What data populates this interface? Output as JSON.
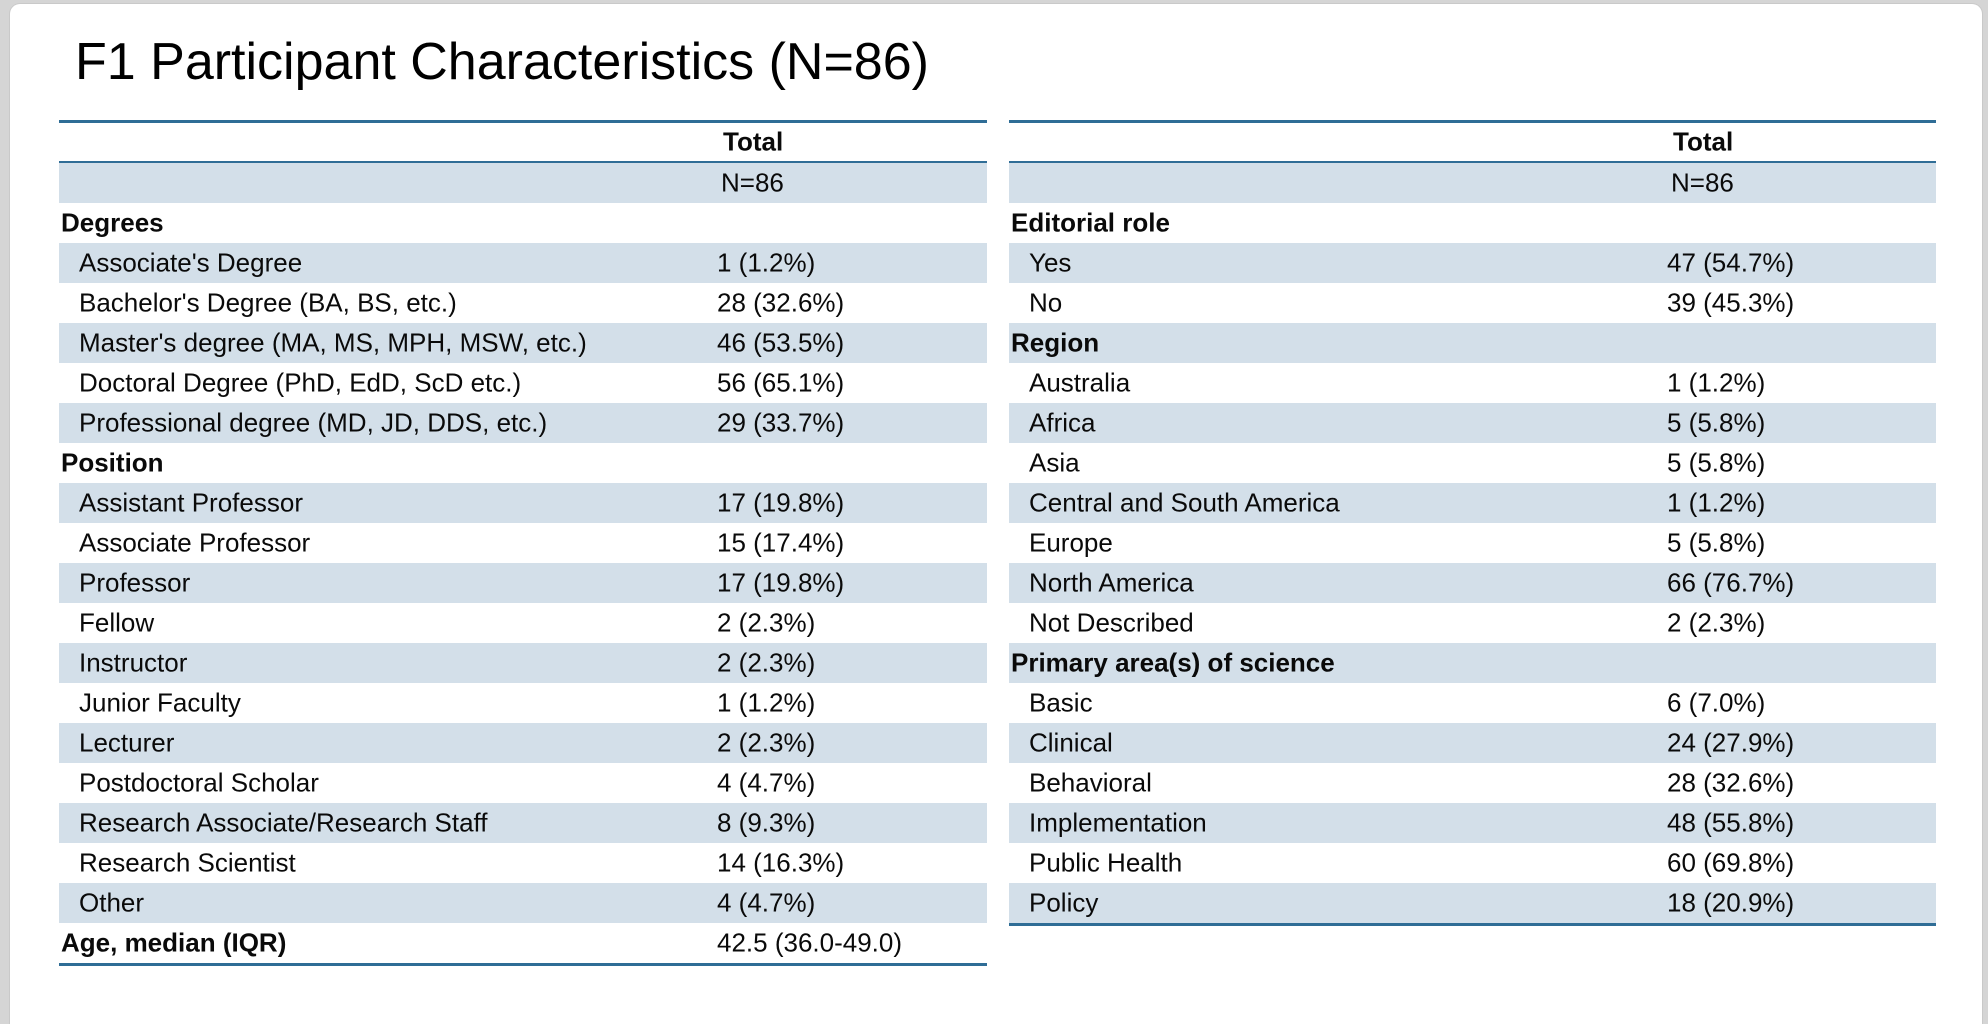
{
  "title": "F1 Participant Characteristics (N=86)",
  "colors": {
    "rule": "#2f6d96",
    "stripe": "#d3dfe9",
    "page_background": "#d5d5d5",
    "canvas_background": "#ffffff",
    "text": "#0a0a0a"
  },
  "tables": [
    {
      "name": "participant-characteristics-left",
      "header_label": "Total",
      "rows": [
        {
          "type": "subheader",
          "label": "",
          "value": "N=86"
        },
        {
          "type": "section",
          "label": "Degrees",
          "value": ""
        },
        {
          "type": "item",
          "label": "Associate's Degree",
          "value": "1 (1.2%)"
        },
        {
          "type": "item",
          "label": "Bachelor's Degree (BA, BS, etc.)",
          "value": "28 (32.6%)"
        },
        {
          "type": "item",
          "label": "Master's degree (MA, MS, MPH, MSW, etc.)",
          "value": "46 (53.5%)"
        },
        {
          "type": "item",
          "label": "Doctoral Degree (PhD, EdD, ScD etc.)",
          "value": "56 (65.1%)"
        },
        {
          "type": "item",
          "label": "Professional degree (MD, JD, DDS, etc.)",
          "value": "29 (33.7%)"
        },
        {
          "type": "section",
          "label": "Position",
          "value": ""
        },
        {
          "type": "item",
          "label": "Assistant Professor",
          "value": "17 (19.8%)"
        },
        {
          "type": "item",
          "label": "Associate Professor",
          "value": "15 (17.4%)"
        },
        {
          "type": "item",
          "label": "Professor",
          "value": "17 (19.8%)"
        },
        {
          "type": "item",
          "label": "Fellow",
          "value": "2 (2.3%)"
        },
        {
          "type": "item",
          "label": "Instructor",
          "value": "2 (2.3%)"
        },
        {
          "type": "item",
          "label": "Junior Faculty",
          "value": "1 (1.2%)"
        },
        {
          "type": "item",
          "label": "Lecturer",
          "value": "2 (2.3%)"
        },
        {
          "type": "item",
          "label": "Postdoctoral Scholar",
          "value": "4 (4.7%)"
        },
        {
          "type": "item",
          "label": "Research Associate/Research Staff",
          "value": "8 (9.3%)"
        },
        {
          "type": "item",
          "label": "Research Scientist",
          "value": "14 (16.3%)"
        },
        {
          "type": "item",
          "label": "Other",
          "value": "4 (4.7%)"
        },
        {
          "type": "section",
          "label": "Age, median (IQR)",
          "value": "42.5 (36.0-49.0)"
        }
      ]
    },
    {
      "name": "participant-characteristics-right",
      "header_label": "Total",
      "rows": [
        {
          "type": "subheader",
          "label": "",
          "value": "N=86"
        },
        {
          "type": "section",
          "label": "Editorial role",
          "value": ""
        },
        {
          "type": "item",
          "label": "Yes",
          "value": "47 (54.7%)"
        },
        {
          "type": "item",
          "label": "No",
          "value": "39 (45.3%)"
        },
        {
          "type": "section",
          "label": "Region",
          "value": ""
        },
        {
          "type": "item",
          "label": "Australia",
          "value": "1 (1.2%)"
        },
        {
          "type": "item",
          "label": "Africa",
          "value": "5 (5.8%)"
        },
        {
          "type": "item",
          "label": "Asia",
          "value": "5 (5.8%)"
        },
        {
          "type": "item",
          "label": "Central and South America",
          "value": "1 (1.2%)"
        },
        {
          "type": "item",
          "label": "Europe",
          "value": "5 (5.8%)"
        },
        {
          "type": "item",
          "label": "North America",
          "value": "66 (76.7%)"
        },
        {
          "type": "item",
          "label": "Not Described",
          "value": "2 (2.3%)"
        },
        {
          "type": "section",
          "label": "Primary area(s) of science",
          "value": ""
        },
        {
          "type": "item",
          "label": "Basic",
          "value": "6 (7.0%)"
        },
        {
          "type": "item",
          "label": "Clinical",
          "value": "24 (27.9%)"
        },
        {
          "type": "item",
          "label": "Behavioral",
          "value": "28 (32.6%)"
        },
        {
          "type": "item",
          "label": "Implementation",
          "value": "48 (55.8%)"
        },
        {
          "type": "item",
          "label": "Public Health",
          "value": "60 (69.8%)"
        },
        {
          "type": "item",
          "label": "Policy",
          "value": "18 (20.9%)"
        }
      ]
    }
  ]
}
